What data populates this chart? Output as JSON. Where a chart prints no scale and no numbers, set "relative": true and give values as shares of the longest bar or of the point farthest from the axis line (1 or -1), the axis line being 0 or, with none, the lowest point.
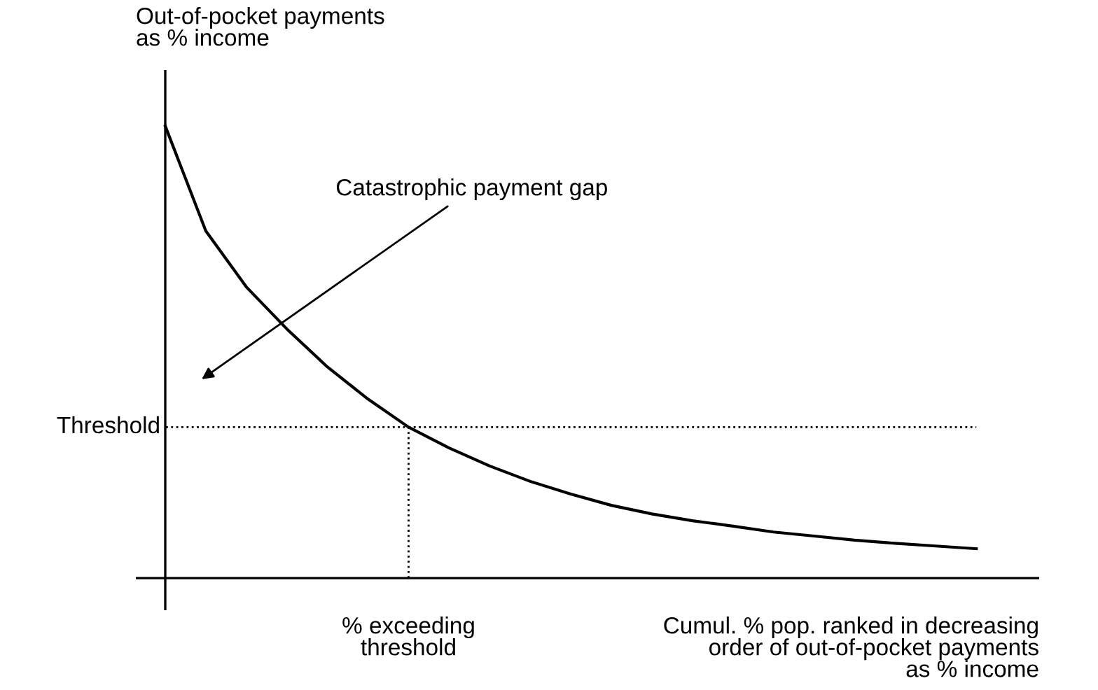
{
  "chart_data": {
    "type": "line",
    "relative": true,
    "ylabel": "Out-of-pocket payments\nas % income",
    "xlabel": "Cumul. % pop. ranked in decreasing\norder of out-of-pocket payments\nas % income",
    "categories": [
      null,
      null,
      null,
      null,
      null,
      null,
      null,
      null,
      null,
      null,
      null,
      null,
      null,
      null,
      null,
      null,
      null,
      null,
      null,
      null,
      null
    ],
    "series": [
      {
        "color": "#000000",
        "values": [
          1.0,
          0.768,
          0.644,
          0.551,
          0.467,
          0.396,
          0.334,
          0.288,
          0.248,
          0.214,
          0.186,
          0.161,
          0.142,
          0.127,
          0.115,
          0.102,
          0.093,
          0.084,
          0.077,
          0.071,
          0.065
        ]
      }
    ],
    "ref_lines": [
      {
        "axis": "y",
        "value": 0.334,
        "label": "Threshold",
        "line_style": "dotted",
        "color": "#000000"
      }
    ],
    "annotations": [
      "Catastrophic payment gap",
      "% exceeding\nthreshold"
    ],
    "marker": "none",
    "line_style": "solid",
    "legend": false
  }
}
